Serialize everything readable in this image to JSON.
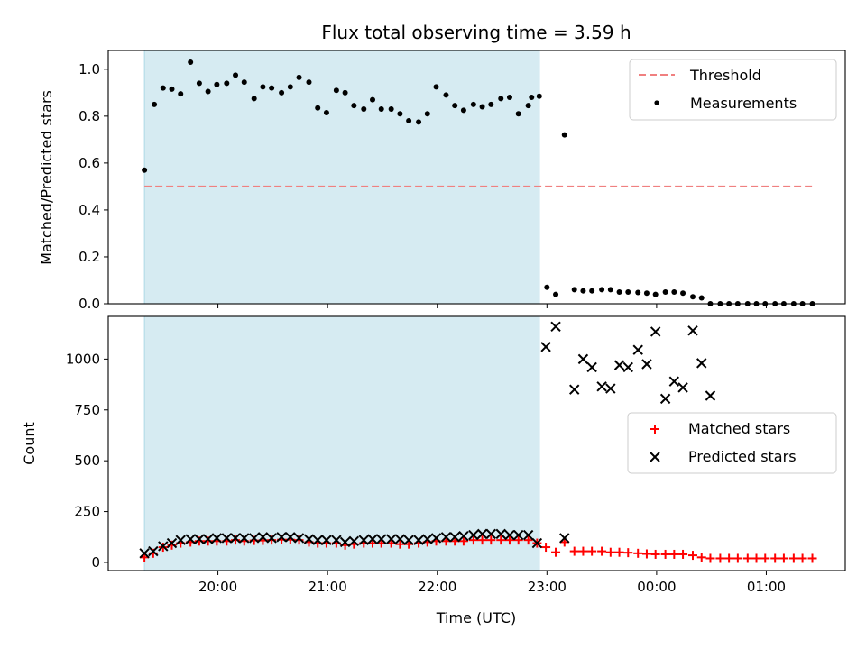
{
  "chart_data": [
    {
      "type": "scatter",
      "title": "Flux total observing time = 3.59 h",
      "ylabel": "Matched/Predicted stars",
      "xlabel": "",
      "ylim": [
        0,
        1.08
      ],
      "yticks": [
        "0.0",
        "0.2",
        "0.4",
        "0.6",
        "0.8",
        "1.0"
      ],
      "xlim_hours": [
        19.0,
        25.72
      ],
      "shaded_region_hours": [
        19.33,
        22.93
      ],
      "legend_position": "top-right",
      "threshold": {
        "name": "Threshold",
        "value": 0.5,
        "x_range_hours": [
          19.33,
          25.42
        ],
        "color": "#f08080"
      },
      "series": [
        {
          "name": "Measurements",
          "color": "#000000",
          "x_hours": [
            19.33,
            19.42,
            19.5,
            19.58,
            19.66,
            19.75,
            19.83,
            19.91,
            19.99,
            20.08,
            20.16,
            20.24,
            20.33,
            20.41,
            20.49,
            20.58,
            20.66,
            20.74,
            20.83,
            20.91,
            20.99,
            21.08,
            21.16,
            21.24,
            21.33,
            21.41,
            21.49,
            21.58,
            21.66,
            21.74,
            21.83,
            21.91,
            21.99,
            22.08,
            22.16,
            22.24,
            22.33,
            22.41,
            22.49,
            22.58,
            22.66,
            22.74,
            22.83,
            22.86,
            22.93,
            23.0,
            23.08,
            23.16,
            23.25,
            23.33,
            23.41,
            23.5,
            23.58,
            23.66,
            23.74,
            23.83,
            23.91,
            23.99,
            24.08,
            24.16,
            24.24,
            24.33,
            24.41,
            24.49,
            24.58,
            24.66,
            24.74,
            24.83,
            24.91,
            24.99,
            25.08,
            25.16,
            25.25,
            25.33,
            25.42
          ],
          "y": [
            0.57,
            0.85,
            0.92,
            0.915,
            0.895,
            1.03,
            0.94,
            0.905,
            0.935,
            0.94,
            0.975,
            0.945,
            0.875,
            0.925,
            0.92,
            0.9,
            0.925,
            0.965,
            0.945,
            0.835,
            0.815,
            0.91,
            0.9,
            0.845,
            0.83,
            0.87,
            0.83,
            0.83,
            0.81,
            0.78,
            0.775,
            0.81,
            0.925,
            0.89,
            0.845,
            0.825,
            0.85,
            0.84,
            0.85,
            0.875,
            0.88,
            0.81,
            0.845,
            0.88,
            0.885,
            0.07,
            0.04,
            0.72,
            0.06,
            0.055,
            0.055,
            0.06,
            0.06,
            0.05,
            0.05,
            0.048,
            0.045,
            0.04,
            0.05,
            0.05,
            0.045,
            0.03,
            0.025,
            0.0,
            0.0,
            0.0,
            0.0,
            0.0,
            0.0,
            0.0,
            0.0,
            0.0,
            0.0,
            0.0,
            0.0
          ]
        }
      ]
    },
    {
      "type": "scatter",
      "title": "",
      "xlabel": "Time (UTC)",
      "ylabel": "Count",
      "ylim": [
        -40,
        1210
      ],
      "yticks": [
        "0",
        "250",
        "500",
        "750",
        "1000"
      ],
      "xticks": [
        "20:00",
        "21:00",
        "22:00",
        "23:00",
        "00:00",
        "01:00"
      ],
      "xlim_hours": [
        19.0,
        25.72
      ],
      "shaded_region_hours": [
        19.33,
        22.93
      ],
      "legend_position": "center-right",
      "series": [
        {
          "name": "Matched stars",
          "color": "#ff0000",
          "marker": "plus",
          "x_hours": [
            19.33,
            19.41,
            19.5,
            19.58,
            19.66,
            19.75,
            19.83,
            19.91,
            19.99,
            20.08,
            20.16,
            20.24,
            20.33,
            20.41,
            20.49,
            20.58,
            20.66,
            20.74,
            20.83,
            20.91,
            20.99,
            21.08,
            21.16,
            21.24,
            21.33,
            21.41,
            21.49,
            21.58,
            21.66,
            21.74,
            21.83,
            21.91,
            21.99,
            22.08,
            22.16,
            22.24,
            22.33,
            22.41,
            22.49,
            22.58,
            22.66,
            22.74,
            22.83,
            22.91,
            22.99,
            23.08,
            23.16,
            23.25,
            23.33,
            23.41,
            23.5,
            23.58,
            23.66,
            23.74,
            23.83,
            23.91,
            23.99,
            24.08,
            24.16,
            24.24,
            24.33,
            24.41,
            24.49,
            24.58,
            24.66,
            24.74,
            24.83,
            24.91,
            24.99,
            25.08,
            25.16,
            25.25,
            25.33,
            25.42
          ],
          "y": [
            25,
            45,
            75,
            85,
            95,
            100,
            105,
            105,
            105,
            105,
            110,
            105,
            108,
            108,
            110,
            112,
            112,
            110,
            100,
            95,
            95,
            95,
            85,
            90,
            95,
            95,
            95,
            95,
            90,
            90,
            95,
            100,
            105,
            105,
            105,
            105,
            110,
            110,
            110,
            110,
            110,
            110,
            110,
            95,
            75,
            50,
            100,
            55,
            55,
            55,
            55,
            50,
            50,
            48,
            45,
            42,
            40,
            40,
            40,
            40,
            35,
            25,
            20,
            20,
            20,
            20,
            20,
            20,
            20,
            20,
            20,
            20,
            20,
            20
          ]
        },
        {
          "name": "Predicted stars",
          "color": "#000000",
          "marker": "x",
          "x_hours": [
            19.33,
            19.41,
            19.5,
            19.58,
            19.66,
            19.75,
            19.83,
            19.91,
            19.99,
            20.08,
            20.16,
            20.24,
            20.33,
            20.41,
            20.49,
            20.58,
            20.66,
            20.74,
            20.83,
            20.91,
            20.99,
            21.08,
            21.16,
            21.24,
            21.33,
            21.41,
            21.49,
            21.58,
            21.66,
            21.74,
            21.83,
            21.91,
            21.99,
            22.08,
            22.16,
            22.24,
            22.33,
            22.41,
            22.49,
            22.58,
            22.66,
            22.74,
            22.83,
            22.91,
            22.99,
            23.08,
            23.16,
            23.25,
            23.33,
            23.41,
            23.5,
            23.58,
            23.66,
            23.74,
            23.83,
            23.91,
            23.99,
            24.08,
            24.16,
            24.24,
            24.33,
            24.41,
            24.49
          ],
          "y": [
            45,
            55,
            80,
            95,
            110,
            115,
            115,
            115,
            120,
            120,
            120,
            120,
            120,
            125,
            120,
            125,
            125,
            120,
            115,
            110,
            110,
            110,
            100,
            105,
            110,
            115,
            115,
            115,
            115,
            110,
            110,
            115,
            120,
            125,
            125,
            130,
            135,
            140,
            140,
            140,
            135,
            135,
            135,
            95,
            1060,
            1160,
            120,
            850,
            1000,
            960,
            865,
            855,
            970,
            960,
            1045,
            975,
            1135,
            805,
            890,
            860,
            1140,
            980,
            820
          ]
        }
      ]
    }
  ]
}
